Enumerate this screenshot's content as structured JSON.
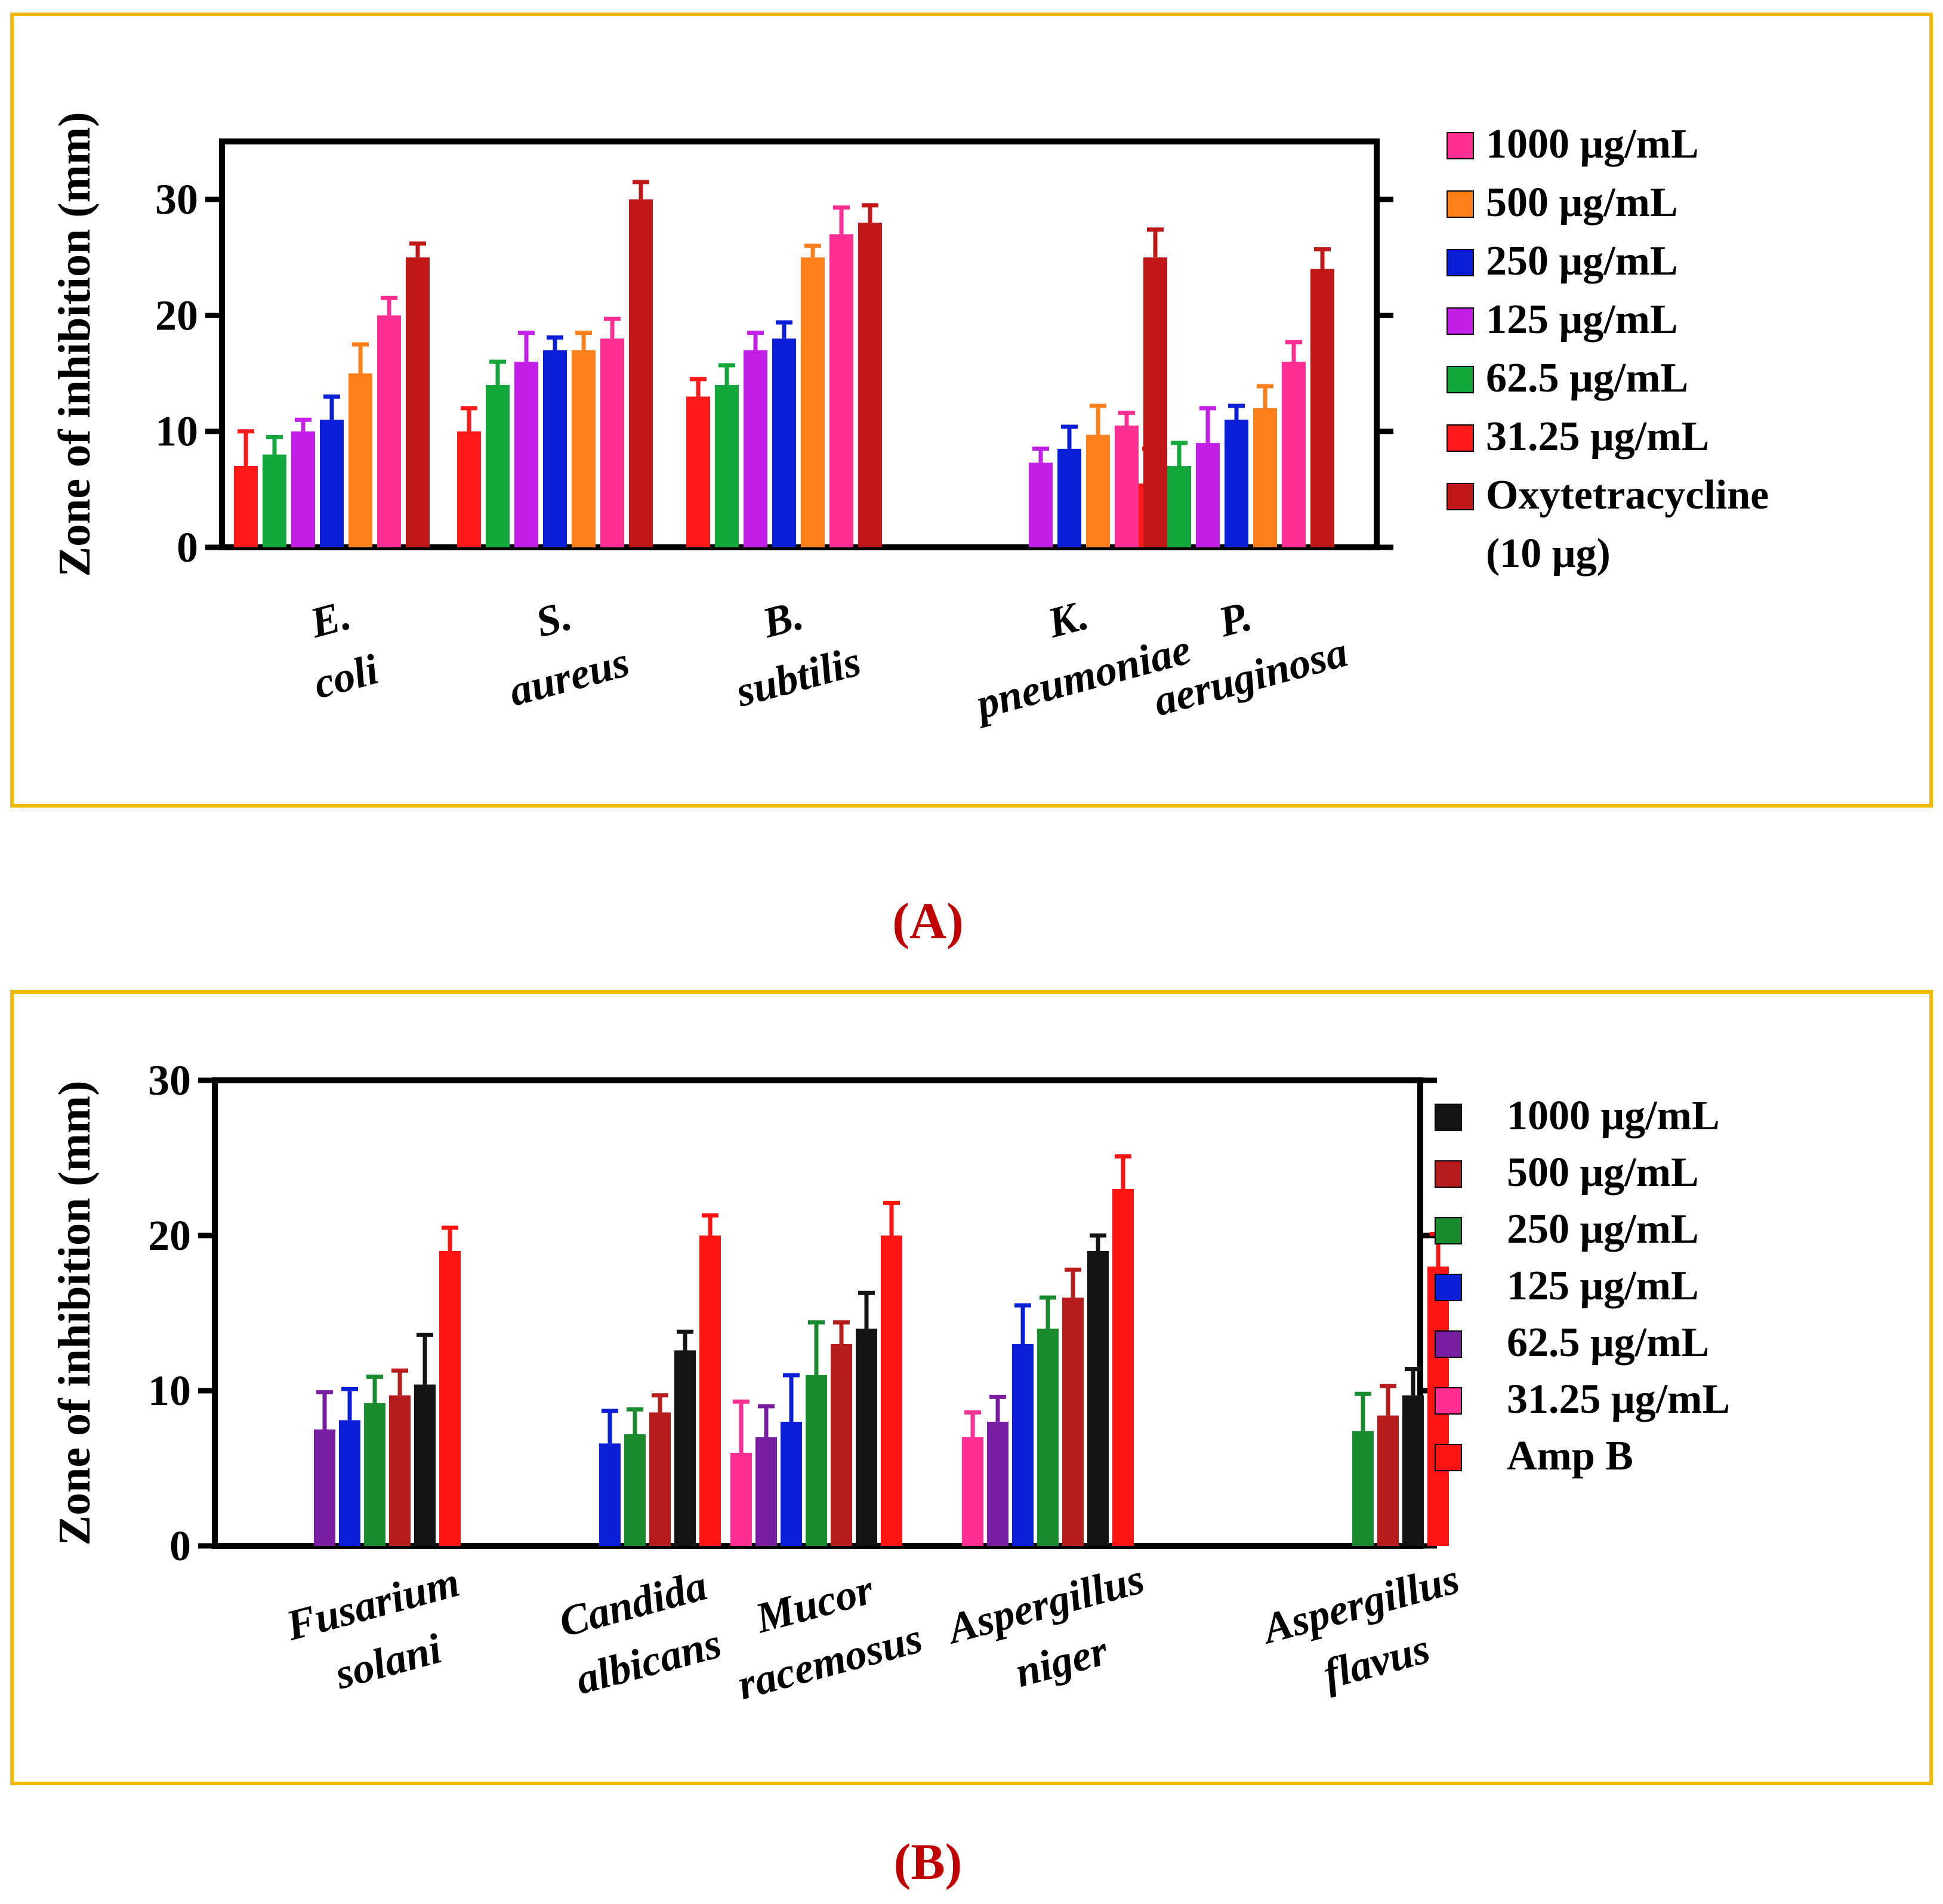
{
  "figure": {
    "border_color": "#f5b800",
    "panel_label_color": "#c00000"
  },
  "chart_data": [
    {
      "panel": "(A)",
      "type": "bar",
      "ylabel": "Zone of inhibition (mm)",
      "ylim": [
        0,
        35
      ],
      "yticks": [
        0,
        10,
        20,
        30
      ],
      "categories": [
        [
          "E.",
          "coli"
        ],
        [
          "S.",
          "aureus"
        ],
        [
          "B.",
          "subtilis"
        ],
        [
          "K.",
          "pneumoniae"
        ],
        [
          "P.",
          "aeruginosa"
        ]
      ],
      "series": [
        {
          "name": "31.25 μg/mL",
          "color": "#ff1a1a",
          "values": [
            7,
            10,
            13,
            null,
            5.5
          ],
          "errors": [
            3,
            2,
            1.5,
            null,
            3
          ]
        },
        {
          "name": "62.5 μg/mL",
          "color": "#14a83c",
          "values": [
            8,
            14,
            14,
            null,
            7
          ],
          "errors": [
            1.5,
            2,
            1.7,
            null,
            2
          ]
        },
        {
          "name": "125  μg/mL",
          "color": "#c21fe8",
          "values": [
            10,
            16,
            17,
            7.3,
            9
          ],
          "errors": [
            1,
            2.5,
            1.5,
            1.2,
            3
          ]
        },
        {
          "name": "250  μg/mL",
          "color": "#0a1fd6",
          "values": [
            11,
            17,
            18,
            8.5,
            11
          ],
          "errors": [
            2,
            1.1,
            1.4,
            1.9,
            1.2
          ]
        },
        {
          "name": "500  μg/mL",
          "color": "#ff7f1a",
          "values": [
            15,
            17,
            25,
            9.7,
            12
          ],
          "errors": [
            2.5,
            1.5,
            1,
            2.5,
            1.9
          ]
        },
        {
          "name": "1000 μg/mL",
          "color": "#ff2e93",
          "values": [
            20,
            18,
            27,
            10.5,
            16
          ],
          "errors": [
            1.5,
            1.7,
            2.3,
            1.1,
            1.7
          ]
        },
        {
          "name": "Oxytetracycline (10 μg)",
          "color": "#c01818",
          "values": [
            25,
            30,
            28,
            25,
            24
          ],
          "errors": [
            1.2,
            1.5,
            1.5,
            2.4,
            1.7
          ]
        }
      ],
      "legend": {
        "position": "right",
        "items": [
          {
            "label": "1000 μg/mL",
            "color": "#ff2e93"
          },
          {
            "label": "500  μg/mL",
            "color": "#ff7f1a"
          },
          {
            "label": "250  μg/mL",
            "color": "#0a1fd6"
          },
          {
            "label": "125  μg/mL",
            "color": "#c21fe8"
          },
          {
            "label": "62.5 μg/mL",
            "color": "#14a83c"
          },
          {
            "label": "31.25 μg/mL",
            "color": "#ff1a1a"
          },
          {
            "label": "Oxytetracycline",
            "label2": "(10 μg)",
            "color": "#c01818"
          }
        ]
      }
    },
    {
      "panel": "(B)",
      "type": "bar",
      "ylabel": "Zone of inhibition (mm)",
      "ylim": [
        0,
        30
      ],
      "yticks": [
        0,
        10,
        20,
        30
      ],
      "categories": [
        [
          "Fusarium",
          "solani"
        ],
        [
          "Candida",
          "albicans"
        ],
        [
          "Mucor",
          "racemosus"
        ],
        [
          "Aspergillus",
          "niger"
        ],
        [
          "Aspergillus",
          "flavus"
        ]
      ],
      "series": [
        {
          "name": "31.25 μg/mL",
          "color": "#ff2e93",
          "values": [
            null,
            null,
            6,
            7,
            null
          ],
          "errors": [
            null,
            null,
            3.3,
            1.6,
            null
          ]
        },
        {
          "name": "62.5 μg/mL",
          "color": "#7a1ea1",
          "values": [
            7.5,
            null,
            7,
            8,
            null
          ],
          "errors": [
            2.4,
            null,
            2,
            1.6,
            null
          ]
        },
        {
          "name": "125  μg/mL",
          "color": "#0a1fd6",
          "values": [
            8.1,
            6.6,
            8,
            13,
            null
          ],
          "errors": [
            2,
            2.1,
            3,
            2.5,
            null
          ]
        },
        {
          "name": "250  μg/mL",
          "color": "#1a8a2e",
          "values": [
            9.2,
            7.2,
            11,
            14,
            7.4
          ],
          "errors": [
            1.7,
            1.6,
            3.4,
            2,
            2.4
          ]
        },
        {
          "name": "500  μg/mL",
          "color": "#b51c1c",
          "values": [
            9.7,
            8.6,
            13,
            16,
            8.4
          ],
          "errors": [
            1.6,
            1.1,
            1.4,
            1.8,
            1.9
          ]
        },
        {
          "name": "1000 μg/mL",
          "color": "#141414",
          "values": [
            10.4,
            12.6,
            14,
            19,
            9.7
          ],
          "errors": [
            3.2,
            1.2,
            2.3,
            1,
            1.7
          ]
        },
        {
          "name": "Amp B",
          "color": "#ff1414",
          "values": [
            19,
            20,
            20,
            23,
            18
          ],
          "errors": [
            1.5,
            1.3,
            2.1,
            2.1,
            2.1
          ]
        }
      ],
      "legend": {
        "position": "right",
        "items": [
          {
            "label": "1000 μg/mL",
            "color": "#141414"
          },
          {
            "label": "500  μg/mL",
            "color": "#b51c1c"
          },
          {
            "label": "250  μg/mL",
            "color": "#1a8a2e"
          },
          {
            "label": "125  μg/mL",
            "color": "#0a1fd6"
          },
          {
            "label": "62.5 μg/mL",
            "color": "#7a1ea1"
          },
          {
            "label": "31.25 μg/mL",
            "color": "#ff2e93"
          },
          {
            "label": "Amp B",
            "color": "#ff1414"
          }
        ]
      }
    }
  ]
}
